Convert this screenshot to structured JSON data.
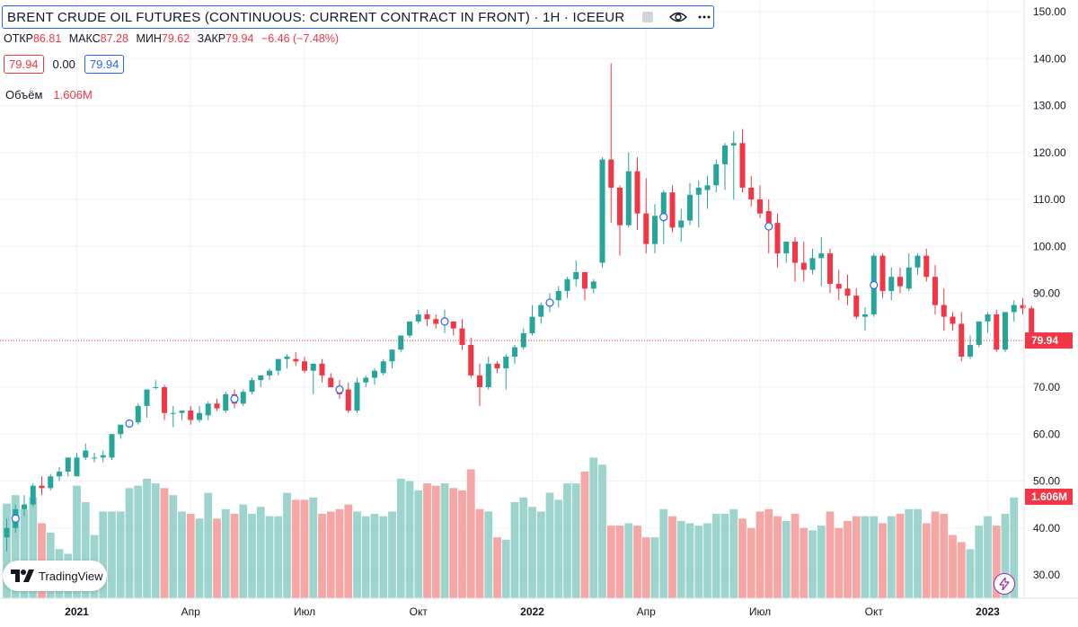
{
  "header": {
    "title": "BRENT CRUDE OIL FUTURES (CONTINUOUS: CURRENT CONTRACT IN FRONT) · 1Н · ICEEUR",
    "ohlc": {
      "open_label": "ОТКР",
      "open": "86.81",
      "high_label": "МАКС",
      "high": "87.28",
      "low_label": "МИН",
      "low": "79.62",
      "close_label": "ЗАКР",
      "close": "79.94",
      "change": "−6.46 (−7.48%)"
    },
    "bid": "79.94",
    "spread": "0.00",
    "ask": "79.94",
    "volume_label": "Объём",
    "volume_value": "1.606M"
  },
  "logo": {
    "text": "TradingView"
  },
  "icons": [
    "eye-icon",
    "tradingview-logo-icon",
    "bolt-icon",
    "marker-circle-icon"
  ],
  "colors": {
    "up": "#26a69a",
    "down": "#f23645",
    "vol_up": "#9ed4ce",
    "vol_down": "#f6a6a5",
    "accent": "#2962ff",
    "grid": "#f0f3fa"
  },
  "chart_data": {
    "type": "candlestick",
    "title": "BRENT CRUDE OIL FUTURES (CONTINUOUS: CURRENT CONTRACT IN FRONT)",
    "timeframe": "1 week",
    "ylim": [
      26,
      152
    ],
    "y_ticks": [
      "150.00",
      "140.00",
      "130.00",
      "120.00",
      "110.00",
      "100.00",
      "90.00",
      "80.00",
      "70.00",
      "60.00",
      "50.00",
      "40.00",
      "30.00"
    ],
    "x_ticks": [
      {
        "label": "2021",
        "index": 8
      },
      {
        "label": "Апр",
        "index": 21
      },
      {
        "label": "Июл",
        "index": 34
      },
      {
        "label": "Окт",
        "index": 47
      },
      {
        "label": "2022",
        "index": 60
      },
      {
        "label": "Апр",
        "index": 73
      },
      {
        "label": "Июл",
        "index": 86
      },
      {
        "label": "Окт",
        "index": 99
      },
      {
        "label": "2023",
        "index": 112
      }
    ],
    "last_price": {
      "value": 79.94,
      "label": "79.94"
    },
    "last_volume": {
      "label": "1.606M"
    },
    "candles": [
      [
        38.0,
        42.0,
        35.0,
        40.0
      ],
      [
        40.0,
        45.0,
        39.0,
        44.0
      ],
      [
        44.0,
        47.0,
        42.5,
        45.0
      ],
      [
        45.0,
        49.5,
        44.5,
        49.0
      ],
      [
        49.0,
        51.0,
        47.0,
        48.5
      ],
      [
        48.5,
        51.5,
        48.0,
        51.0
      ],
      [
        51.0,
        53.0,
        50.0,
        52.0
      ],
      [
        52.0,
        55.0,
        51.0,
        55.0
      ],
      [
        51.0,
        56.0,
        51.0,
        55.0
      ],
      [
        55.0,
        58.0,
        54.5,
        56.5
      ],
      [
        55.0,
        56.0,
        54.0,
        55.0
      ],
      [
        55.0,
        56.5,
        54.0,
        55.5
      ],
      [
        55.0,
        60.0,
        54.5,
        60.0
      ],
      [
        60.0,
        62.0,
        59.0,
        62.0
      ],
      [
        62.0,
        63.0,
        61.5,
        62.5
      ],
      [
        62.5,
        66.5,
        62.0,
        66.0
      ],
      [
        66.0,
        69.5,
        63.5,
        69.5
      ],
      [
        70.0,
        71.5,
        69.5,
        70.0
      ],
      [
        70.0,
        70.5,
        63.0,
        64.5
      ],
      [
        64.5,
        66.0,
        61.5,
        64.5
      ],
      [
        64.5,
        65.0,
        63.0,
        65.0
      ],
      [
        65.0,
        66.0,
        62.0,
        63.0
      ],
      [
        63.0,
        66.0,
        62.5,
        64.5
      ],
      [
        64.0,
        67.0,
        63.0,
        66.5
      ],
      [
        66.5,
        67.5,
        65.0,
        65.5
      ],
      [
        65.0,
        69.0,
        64.5,
        68.5
      ],
      [
        68.5,
        69.5,
        65.5,
        66.5
      ],
      [
        66.5,
        69.5,
        66.0,
        69.0
      ],
      [
        69.0,
        72.0,
        68.5,
        71.5
      ],
      [
        71.5,
        72.5,
        70.0,
        72.5
      ],
      [
        72.5,
        74.0,
        71.5,
        73.5
      ],
      [
        73.5,
        76.0,
        72.5,
        76.0
      ],
      [
        76.0,
        77.0,
        74.0,
        76.5
      ],
      [
        76.0,
        77.5,
        74.5,
        75.5
      ],
      [
        75.5,
        76.5,
        73.0,
        73.5
      ],
      [
        73.5,
        75.0,
        68.5,
        75.0
      ],
      [
        75.0,
        76.0,
        71.0,
        72.5
      ],
      [
        72.0,
        73.0,
        71.0,
        70.0
      ],
      [
        70.0,
        71.5,
        67.5,
        68.5
      ],
      [
        69.5,
        71.0,
        64.5,
        65.0
      ],
      [
        65.0,
        72.0,
        64.5,
        71.0
      ],
      [
        71.0,
        72.5,
        70.0,
        72.0
      ],
      [
        72.0,
        74.0,
        70.5,
        73.5
      ],
      [
        73.0,
        76.0,
        72.5,
        75.5
      ],
      [
        75.5,
        78.0,
        74.0,
        78.0
      ],
      [
        78.0,
        81.0,
        77.5,
        81.0
      ],
      [
        81.0,
        84.0,
        80.5,
        84.0
      ],
      [
        84.0,
        86.5,
        83.5,
        85.5
      ],
      [
        85.5,
        86.5,
        83.0,
        84.5
      ],
      [
        84.5,
        85.5,
        82.5,
        83.5
      ],
      [
        83.5,
        86.5,
        81.5,
        84.0
      ],
      [
        84.0,
        84.0,
        81.0,
        82.5
      ],
      [
        82.5,
        84.5,
        78.0,
        79.0
      ],
      [
        79.0,
        80.5,
        72.0,
        72.5
      ],
      [
        72.5,
        75.0,
        66.0,
        70.0
      ],
      [
        70.0,
        76.5,
        69.5,
        75.0
      ],
      [
        75.0,
        75.5,
        73.0,
        74.0
      ],
      [
        74.0,
        77.0,
        69.5,
        76.5
      ],
      [
        76.5,
        79.0,
        75.0,
        78.5
      ],
      [
        78.5,
        82.5,
        78.0,
        81.5
      ],
      [
        81.5,
        87.5,
        81.0,
        85.0
      ],
      [
        85.0,
        88.0,
        83.5,
        87.5
      ],
      [
        87.5,
        90.0,
        86.0,
        88.5
      ],
      [
        88.5,
        91.5,
        87.0,
        90.5
      ],
      [
        90.5,
        93.5,
        89.0,
        93.0
      ],
      [
        93.0,
        97.0,
        91.5,
        94.5
      ],
      [
        94.5,
        94.5,
        88.5,
        91.0
      ],
      [
        91.0,
        93.0,
        90.0,
        92.5
      ],
      [
        96.5,
        119.0,
        95.5,
        118.5
      ],
      [
        118.5,
        139.0,
        105.0,
        112.5
      ],
      [
        112.5,
        113.0,
        98.0,
        104.5
      ],
      [
        104.5,
        120.0,
        104.0,
        116.0
      ],
      [
        116.0,
        119.0,
        103.5,
        107.0
      ],
      [
        107.0,
        114.5,
        98.5,
        100.5
      ],
      [
        100.5,
        109.0,
        98.5,
        106.5
      ],
      [
        106.5,
        112.0,
        100.5,
        111.5
      ],
      [
        111.5,
        113.0,
        103.0,
        104.0
      ],
      [
        104.0,
        108.0,
        101.0,
        105.5
      ],
      [
        105.5,
        113.5,
        104.5,
        111.0
      ],
      [
        111.0,
        114.0,
        104.0,
        112.5
      ],
      [
        112.0,
        115.0,
        108.0,
        113.0
      ],
      [
        113.0,
        118.5,
        111.5,
        117.5
      ],
      [
        117.5,
        122.0,
        112.0,
        121.5
      ],
      [
        121.5,
        124.5,
        110.0,
        122.0
      ],
      [
        122.0,
        125.0,
        111.5,
        112.5
      ],
      [
        112.5,
        115.0,
        108.5,
        110.0
      ],
      [
        110.0,
        113.0,
        106.0,
        107.0
      ],
      [
        107.5,
        110.0,
        98.5,
        105.0
      ],
      [
        105.0,
        107.0,
        95.5,
        98.5
      ],
      [
        98.5,
        101.0,
        96.5,
        101.0
      ],
      [
        101.0,
        102.0,
        92.5,
        96.5
      ],
      [
        96.5,
        101.0,
        92.5,
        95.0
      ],
      [
        95.0,
        99.5,
        94.0,
        97.5
      ],
      [
        97.5,
        102.0,
        91.5,
        98.5
      ],
      [
        98.5,
        99.5,
        90.0,
        92.0
      ],
      [
        92.0,
        95.0,
        88.5,
        91.0
      ],
      [
        91.0,
        94.0,
        87.5,
        89.5
      ],
      [
        89.5,
        91.0,
        84.5,
        85.0
      ],
      [
        85.0,
        87.0,
        82.0,
        85.5
      ],
      [
        85.5,
        98.5,
        85.0,
        98.0
      ],
      [
        98.0,
        98.5,
        89.0,
        90.5
      ],
      [
        90.5,
        95.5,
        88.5,
        93.5
      ],
      [
        93.5,
        95.5,
        90.0,
        91.5
      ],
      [
        91.0,
        98.5,
        90.5,
        95.5
      ],
      [
        95.5,
        98.5,
        94.0,
        98.0
      ],
      [
        98.0,
        99.5,
        92.5,
        93.5
      ],
      [
        93.5,
        96.0,
        85.5,
        87.5
      ],
      [
        87.5,
        91.0,
        82.0,
        85.0
      ],
      [
        85.0,
        86.0,
        82.0,
        83.5
      ],
      [
        83.5,
        86.0,
        75.5,
        76.5
      ],
      [
        76.5,
        81.0,
        76.0,
        79.0
      ],
      [
        79.0,
        84.0,
        78.5,
        84.0
      ],
      [
        84.0,
        86.0,
        81.5,
        85.5
      ],
      [
        85.5,
        86.5,
        77.5,
        78.0
      ],
      [
        78.0,
        86.0,
        77.5,
        86.0
      ],
      [
        86.0,
        88.5,
        84.0,
        87.5
      ],
      [
        87.5,
        89.0,
        85.5,
        86.8
      ],
      [
        86.8,
        87.3,
        79.6,
        79.9
      ]
    ],
    "volumes": [
      45.2,
      47.0,
      44.0,
      46.5,
      41.0,
      39.0,
      35.5,
      34.5,
      49.0,
      45.5,
      38.5,
      43.5,
      43.5,
      43.5,
      48.5,
      49.0,
      50.5,
      49.5,
      48.5,
      47.0,
      43.5,
      43.0,
      42.0,
      47.5,
      42.0,
      44.0,
      43.0,
      45.0,
      43.0,
      44.5,
      42.5,
      42.5,
      47.5,
      46.0,
      46.0,
      46.5,
      43.0,
      43.5,
      44.0,
      45.0,
      43.5,
      42.5,
      43.0,
      42.5,
      43.5,
      50.5,
      50.0,
      48.0,
      49.5,
      49.0,
      49.5,
      48.5,
      48.0,
      52.5,
      44.0,
      43.5,
      38.0,
      37.5,
      45.5,
      46.5,
      44.5,
      43.5,
      47.5,
      46.0,
      49.5,
      49.5,
      52.0,
      55.0,
      53.5,
      40.5,
      40.5,
      41.0,
      40.5,
      38.0,
      38.0,
      44.0,
      42.5,
      41.5,
      41.0,
      40.5,
      41.0,
      43.0,
      43.0,
      44.0,
      42.0,
      40.0,
      43.5,
      44.0,
      42.5,
      41.5,
      43.0,
      40.0,
      39.5,
      40.5,
      43.5,
      40.0,
      41.5,
      42.5,
      42.5,
      42.5,
      41.0,
      42.5,
      43.0,
      44.0,
      44.0,
      41.0,
      43.5,
      43.0,
      38.5,
      37.0,
      35.5,
      40.5,
      42.5,
      40.5,
      43.0,
      46.5
    ],
    "markers": [
      1,
      14,
      26,
      38,
      50,
      62,
      75,
      87,
      99
    ]
  }
}
